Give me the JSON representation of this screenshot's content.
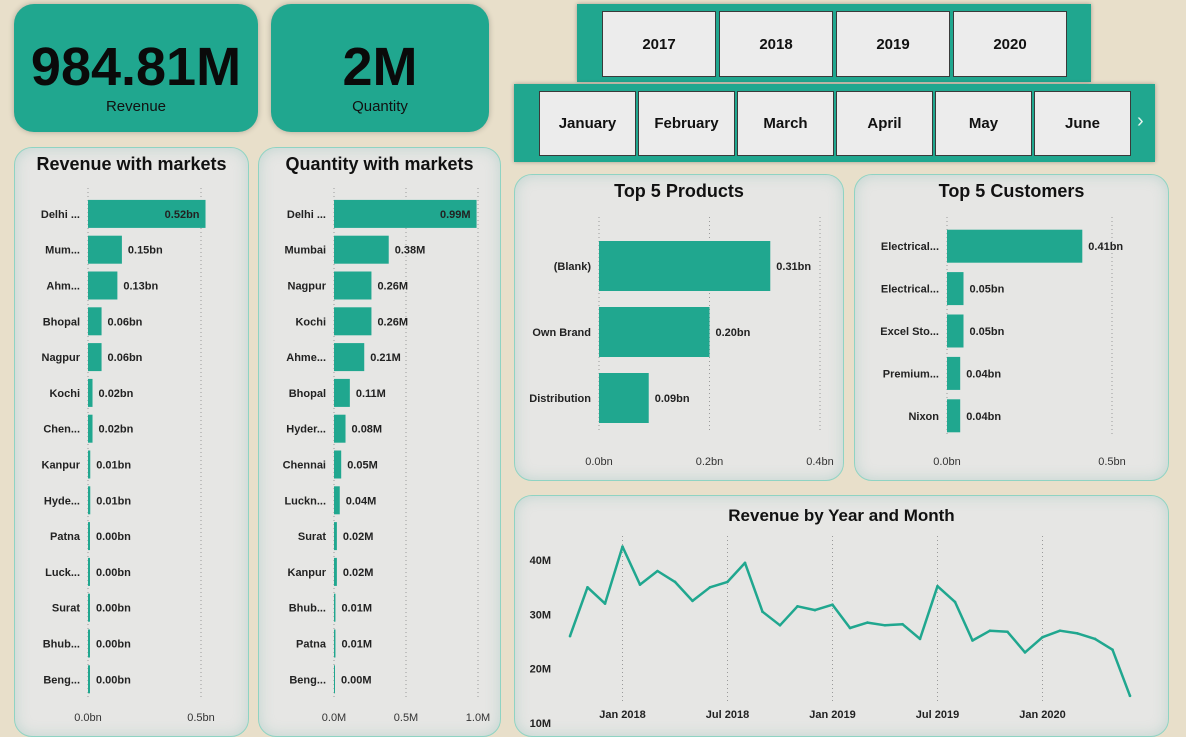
{
  "kpis": {
    "revenue": {
      "value": "984.81M",
      "label": "Revenue"
    },
    "quantity": {
      "value": "2M",
      "label": "Quantity"
    }
  },
  "slicers": {
    "years": [
      "2017",
      "2018",
      "2019",
      "2020"
    ],
    "months": [
      "January",
      "February",
      "March",
      "April",
      "May",
      "June"
    ]
  },
  "colors": {
    "accent": "#20a78f",
    "background": "#e8dfca",
    "panel": "#e6e6e4"
  },
  "chart_data": [
    {
      "id": "revenue_markets",
      "type": "bar",
      "orientation": "horizontal",
      "title": "Revenue with markets",
      "categories": [
        "Delhi ...",
        "Mum...",
        "Ahm...",
        "Bhopal",
        "Nagpur",
        "Kochi",
        "Chen...",
        "Kanpur",
        "Hyde...",
        "Patna",
        "Luck...",
        "Surat",
        "Bhub...",
        "Beng..."
      ],
      "values": [
        0.52,
        0.15,
        0.13,
        0.06,
        0.06,
        0.02,
        0.02,
        0.01,
        0.01,
        0.0,
        0.0,
        0.0,
        0.0,
        0.0
      ],
      "data_labels": [
        "0.52bn",
        "0.15bn",
        "0.13bn",
        "0.06bn",
        "0.06bn",
        "0.02bn",
        "0.02bn",
        "0.01bn",
        "0.01bn",
        "0.00bn",
        "0.00bn",
        "0.00bn",
        "0.00bn",
        "0.00bn"
      ],
      "xlim": [
        0,
        0.5
      ],
      "xticks": [
        0,
        0.5
      ],
      "xtick_labels": [
        "0.0bn",
        "0.5bn"
      ]
    },
    {
      "id": "quantity_markets",
      "type": "bar",
      "orientation": "horizontal",
      "title": "Quantity with markets",
      "categories": [
        "Delhi ...",
        "Mumbai",
        "Nagpur",
        "Kochi",
        "Ahme...",
        "Bhopal",
        "Hyder...",
        "Chennai",
        "Luckn...",
        "Surat",
        "Kanpur",
        "Bhub...",
        "Patna",
        "Beng..."
      ],
      "values": [
        0.99,
        0.38,
        0.26,
        0.26,
        0.21,
        0.11,
        0.08,
        0.05,
        0.04,
        0.02,
        0.02,
        0.01,
        0.01,
        0.0
      ],
      "data_labels": [
        "0.99M",
        "0.38M",
        "0.26M",
        "0.26M",
        "0.21M",
        "0.11M",
        "0.08M",
        "0.05M",
        "0.04M",
        "0.02M",
        "0.02M",
        "0.01M",
        "0.01M",
        "0.00M"
      ],
      "xlim": [
        0,
        1.0
      ],
      "xticks": [
        0,
        0.5,
        1.0
      ],
      "xtick_labels": [
        "0.0M",
        "0.5M",
        "1.0M"
      ]
    },
    {
      "id": "top_products",
      "type": "bar",
      "orientation": "horizontal",
      "title": "Top 5 Products",
      "categories": [
        "(Blank)",
        "Own Brand",
        "Distribution"
      ],
      "values": [
        0.31,
        0.2,
        0.09
      ],
      "data_labels": [
        "0.31bn",
        "0.20bn",
        "0.09bn"
      ],
      "xlim": [
        0,
        0.4
      ],
      "xticks": [
        0,
        0.2,
        0.4
      ],
      "xtick_labels": [
        "0.0bn",
        "0.2bn",
        "0.4bn"
      ]
    },
    {
      "id": "top_customers",
      "type": "bar",
      "orientation": "horizontal",
      "title": "Top 5 Customers",
      "categories": [
        "Electrical...",
        "Electrical...",
        "Excel Sto...",
        "Premium...",
        "Nixon"
      ],
      "values": [
        0.41,
        0.05,
        0.05,
        0.04,
        0.04
      ],
      "data_labels": [
        "0.41bn",
        "0.05bn",
        "0.05bn",
        "0.04bn",
        "0.04bn"
      ],
      "xlim": [
        0,
        0.5
      ],
      "xticks": [
        0,
        0.5
      ],
      "xtick_labels": [
        "0.0bn",
        "0.5bn"
      ]
    },
    {
      "id": "revenue_trend",
      "type": "line",
      "title": "Revenue by Year and Month",
      "x": [
        "2017-10",
        "2017-11",
        "2017-12",
        "2018-01",
        "2018-02",
        "2018-03",
        "2018-04",
        "2018-05",
        "2018-06",
        "2018-07",
        "2018-08",
        "2018-09",
        "2018-10",
        "2018-11",
        "2018-12",
        "2019-01",
        "2019-02",
        "2019-03",
        "2019-04",
        "2019-05",
        "2019-06",
        "2019-07",
        "2019-08",
        "2019-09",
        "2019-10",
        "2019-11",
        "2019-12",
        "2020-01",
        "2020-02",
        "2020-03",
        "2020-04",
        "2020-05",
        "2020-06"
      ],
      "y": [
        26,
        35,
        32,
        42.5,
        35.5,
        38,
        36,
        32.5,
        35,
        36,
        39.5,
        30.5,
        28,
        31.5,
        30.8,
        31.8,
        27.5,
        28.5,
        28,
        28.2,
        25.5,
        35.2,
        32.3,
        25.2,
        27,
        26.8,
        23,
        25.8,
        27,
        26.5,
        25.5,
        23.5,
        15
      ],
      "ylim": [
        10,
        45
      ],
      "yticks": [
        10,
        20,
        30,
        40
      ],
      "ytick_labels": [
        "10M",
        "20M",
        "30M",
        "40M"
      ],
      "xtick_labels": [
        {
          "label": "Jan 2018",
          "x": "2018-01"
        },
        {
          "label": "Jul 2018",
          "x": "2018-07"
        },
        {
          "label": "Jan 2019",
          "x": "2019-01"
        },
        {
          "label": "Jul 2019",
          "x": "2019-07"
        },
        {
          "label": "Jan 2020",
          "x": "2020-01"
        }
      ]
    }
  ]
}
